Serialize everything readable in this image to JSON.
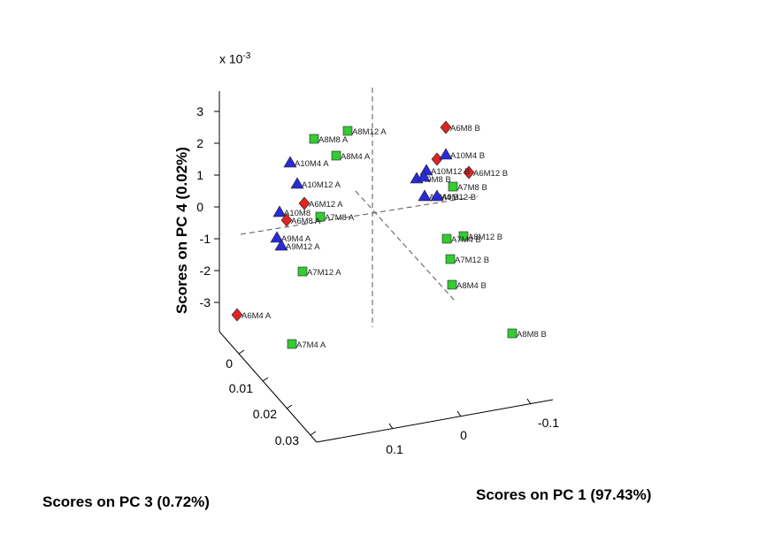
{
  "chart_data": {
    "type": "scatter",
    "projection": "3d",
    "axes": {
      "x": {
        "label": "Scores on PC 1 (97.43%)",
        "ticks": [
          "0.1",
          "0",
          "-0.1"
        ]
      },
      "y": {
        "label": "Scores on PC 3 (0.72%)",
        "ticks": [
          "0",
          "0.01",
          "0.02",
          "0.03"
        ]
      },
      "z": {
        "label": "Scores on PC 4 (0.02%)",
        "ticks": [
          "3",
          "2",
          "1",
          "0",
          "-1",
          "-2",
          "-3"
        ],
        "exponent_base": "x 10",
        "exponent_power": "-3"
      }
    },
    "series_colors": {
      "triangle": "#2a2ad6",
      "diamond": "#e02424",
      "square": "#33cc33"
    },
    "points": [
      {
        "marker": "square",
        "label": "A8M12 A",
        "z": 2.4
      },
      {
        "marker": "square",
        "label": "A8M8 A",
        "z": 2.1
      },
      {
        "marker": "square",
        "label": "A8M4 A",
        "z": 1.6
      },
      {
        "marker": "triangle",
        "label": "A10M4 A",
        "z": 1.4
      },
      {
        "marker": "triangle",
        "label": "A10M12 A",
        "z": 0.7
      },
      {
        "marker": "diamond",
        "label": "A6M12 A",
        "z": 0.0
      },
      {
        "marker": "triangle",
        "label": "A10M8",
        "z": -0.1
      },
      {
        "marker": "square",
        "label": "A7M8 A",
        "z": -0.3
      },
      {
        "marker": "diamond",
        "label": "A6M8 A",
        "z": -0.4
      },
      {
        "marker": "triangle",
        "label": "A9M4 A",
        "z": -1.0
      },
      {
        "marker": "triangle",
        "label": "A9M12 A",
        "z": -1.2
      },
      {
        "marker": "square",
        "label": "A7M12 A",
        "z": -2.0
      },
      {
        "marker": "diamond",
        "label": "A6M4 A",
        "z": -3.4
      },
      {
        "marker": "square",
        "label": "A7M4 A",
        "z": -4.3
      },
      {
        "marker": "diamond",
        "label": "A6M8 B",
        "z": 2.5
      },
      {
        "marker": "diamond",
        "label": "",
        "z": 1.5
      },
      {
        "marker": "triangle",
        "label": "A10M4 B",
        "z": 1.6
      },
      {
        "marker": "diamond",
        "label": "A6M12 B",
        "z": 1.1
      },
      {
        "marker": "triangle",
        "label": "A10M12 B",
        "z": 1.0
      },
      {
        "marker": "triangle",
        "label": "A9M8 B",
        "z": 0.9
      },
      {
        "marker": "triangle",
        "label": "",
        "z": 0.9
      },
      {
        "marker": "square",
        "label": "A7M8 B",
        "z": 0.7
      },
      {
        "marker": "triangle",
        "label": "A9M4 B",
        "z": 0.4
      },
      {
        "marker": "triangle",
        "label": "A9M12 B",
        "z": 0.3
      },
      {
        "marker": "square",
        "label": "A8M12 B",
        "z": -0.8
      },
      {
        "marker": "square",
        "label": "A7M4 B",
        "z": -0.9
      },
      {
        "marker": "square",
        "label": "A7M12 B",
        "z": -1.6
      },
      {
        "marker": "square",
        "label": "A8M4 B",
        "z": -2.4
      },
      {
        "marker": "square",
        "label": "A8M8  B",
        "z": -3.9
      }
    ]
  }
}
